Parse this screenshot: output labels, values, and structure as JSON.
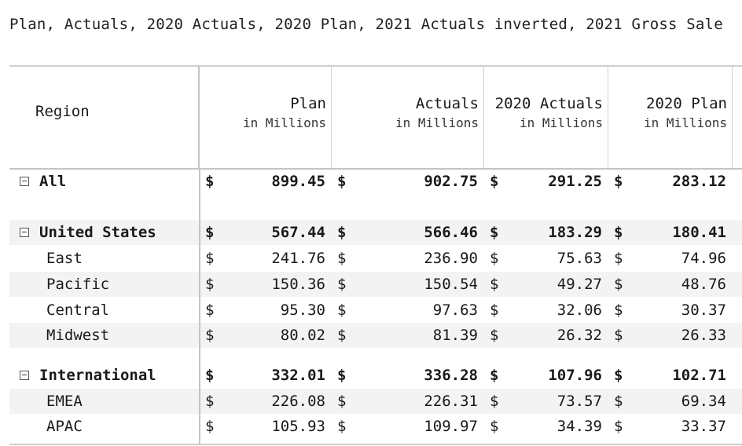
{
  "title": "Plan, Actuals, 2020 Actuals, 2020 Plan, 2021 Actuals inverted, 2021 Gross Sale",
  "header": {
    "region": "Region",
    "columns": [
      {
        "label": "Plan",
        "unit": "in Millions"
      },
      {
        "label": "Actuals",
        "unit": "in Millions"
      },
      {
        "label": "2020 Actuals",
        "unit": "in Millions"
      },
      {
        "label": "2020 Plan",
        "unit": "in Millions"
      }
    ]
  },
  "currency_symbol": "$",
  "rows": [
    {
      "label": "All",
      "type": "group",
      "values": [
        "899.45",
        "902.75",
        "291.25",
        "283.12"
      ]
    },
    {
      "label": "United States",
      "type": "group",
      "values": [
        "567.44",
        "566.46",
        "183.29",
        "180.41"
      ]
    },
    {
      "label": "East",
      "type": "child",
      "values": [
        "241.76",
        "236.90",
        "75.63",
        "74.96"
      ]
    },
    {
      "label": "Pacific",
      "type": "child",
      "values": [
        "150.36",
        "150.54",
        "49.27",
        "48.76"
      ]
    },
    {
      "label": "Central",
      "type": "child",
      "values": [
        "95.30",
        "97.63",
        "32.06",
        "30.37"
      ]
    },
    {
      "label": "Midwest",
      "type": "child",
      "values": [
        "80.02",
        "81.39",
        "26.32",
        "26.33"
      ]
    },
    {
      "label": "International",
      "type": "group",
      "values": [
        "332.01",
        "336.28",
        "107.96",
        "102.71"
      ]
    },
    {
      "label": "EMEA",
      "type": "child",
      "values": [
        "226.08",
        "226.31",
        "73.57",
        "69.34"
      ]
    },
    {
      "label": "APAC",
      "type": "child",
      "values": [
        "105.93",
        "109.97",
        "34.39",
        "33.37"
      ]
    }
  ]
}
